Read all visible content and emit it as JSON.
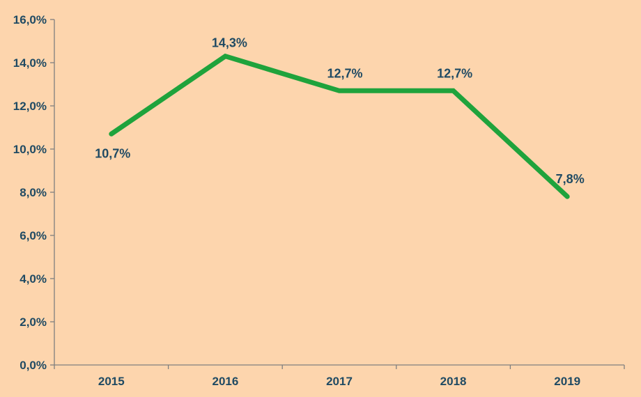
{
  "chart_data": {
    "type": "line",
    "title": "",
    "categories": [
      "2015",
      "2016",
      "2017",
      "2018",
      "2019"
    ],
    "values": [
      10.7,
      14.3,
      12.7,
      12.7,
      7.8
    ],
    "data_labels": [
      "10,7%",
      "14,3%",
      "12,7%",
      "12,7%",
      "7,8%"
    ],
    "y_tick_labels": [
      "0,0%",
      "2,0%",
      "4,0%",
      "6,0%",
      "8,0%",
      "10,0%",
      "12,0%",
      "14,0%",
      "16,0%"
    ],
    "ylim": [
      0,
      16
    ],
    "y_step": 2,
    "xlabel": "",
    "ylabel": "",
    "grid": false,
    "legend": "none",
    "colors": {
      "background": "#fdd5ad",
      "line": "#1fa33c",
      "text": "#1f4a63",
      "axis": "#7f7f7f"
    }
  }
}
